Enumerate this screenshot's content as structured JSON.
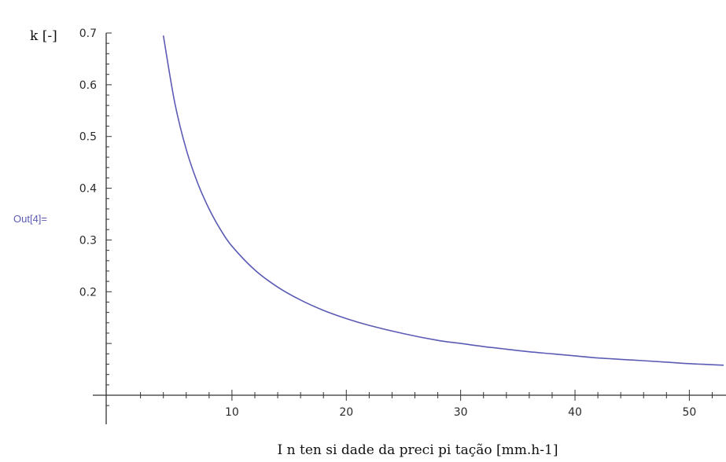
{
  "cell": {
    "out_label": "Out[4]=",
    "out_color": "#5B5BB5"
  },
  "chart_data": {
    "type": "line",
    "title": "",
    "xlabel": "I n ten si dade da preci pi tação  [mm.h-1]",
    "ylabel": "k [-]",
    "xlim": [
      -1,
      53
    ],
    "ylim": [
      0.0,
      0.7
    ],
    "x_ticks": [
      10,
      20,
      30,
      40,
      50
    ],
    "x_tick_labels": [
      "10",
      "20",
      "30",
      "40",
      "50"
    ],
    "y_ticks": [
      0.2,
      0.3,
      0.4,
      0.5,
      0.6,
      0.7
    ],
    "y_tick_labels": [
      "0.2",
      "0.3",
      "0.4",
      "0.5",
      "0.6",
      "0.7"
    ],
    "grid": false,
    "series": [
      {
        "color": "#5B5BB5",
        "x": [
          4,
          5,
          6,
          7,
          8,
          9,
          10,
          12,
          14,
          16,
          18,
          20,
          22,
          25,
          28,
          30,
          32,
          34,
          36,
          38,
          40,
          42,
          45,
          48,
          50,
          53
        ],
        "y": [
          0.695,
          0.565,
          0.475,
          0.41,
          0.36,
          0.32,
          0.288,
          0.242,
          0.209,
          0.184,
          0.164,
          0.148,
          0.135,
          0.119,
          0.106,
          0.1,
          0.094,
          0.089,
          0.084,
          0.08,
          0.076,
          0.072,
          0.068,
          0.064,
          0.061,
          0.058
        ]
      }
    ]
  }
}
